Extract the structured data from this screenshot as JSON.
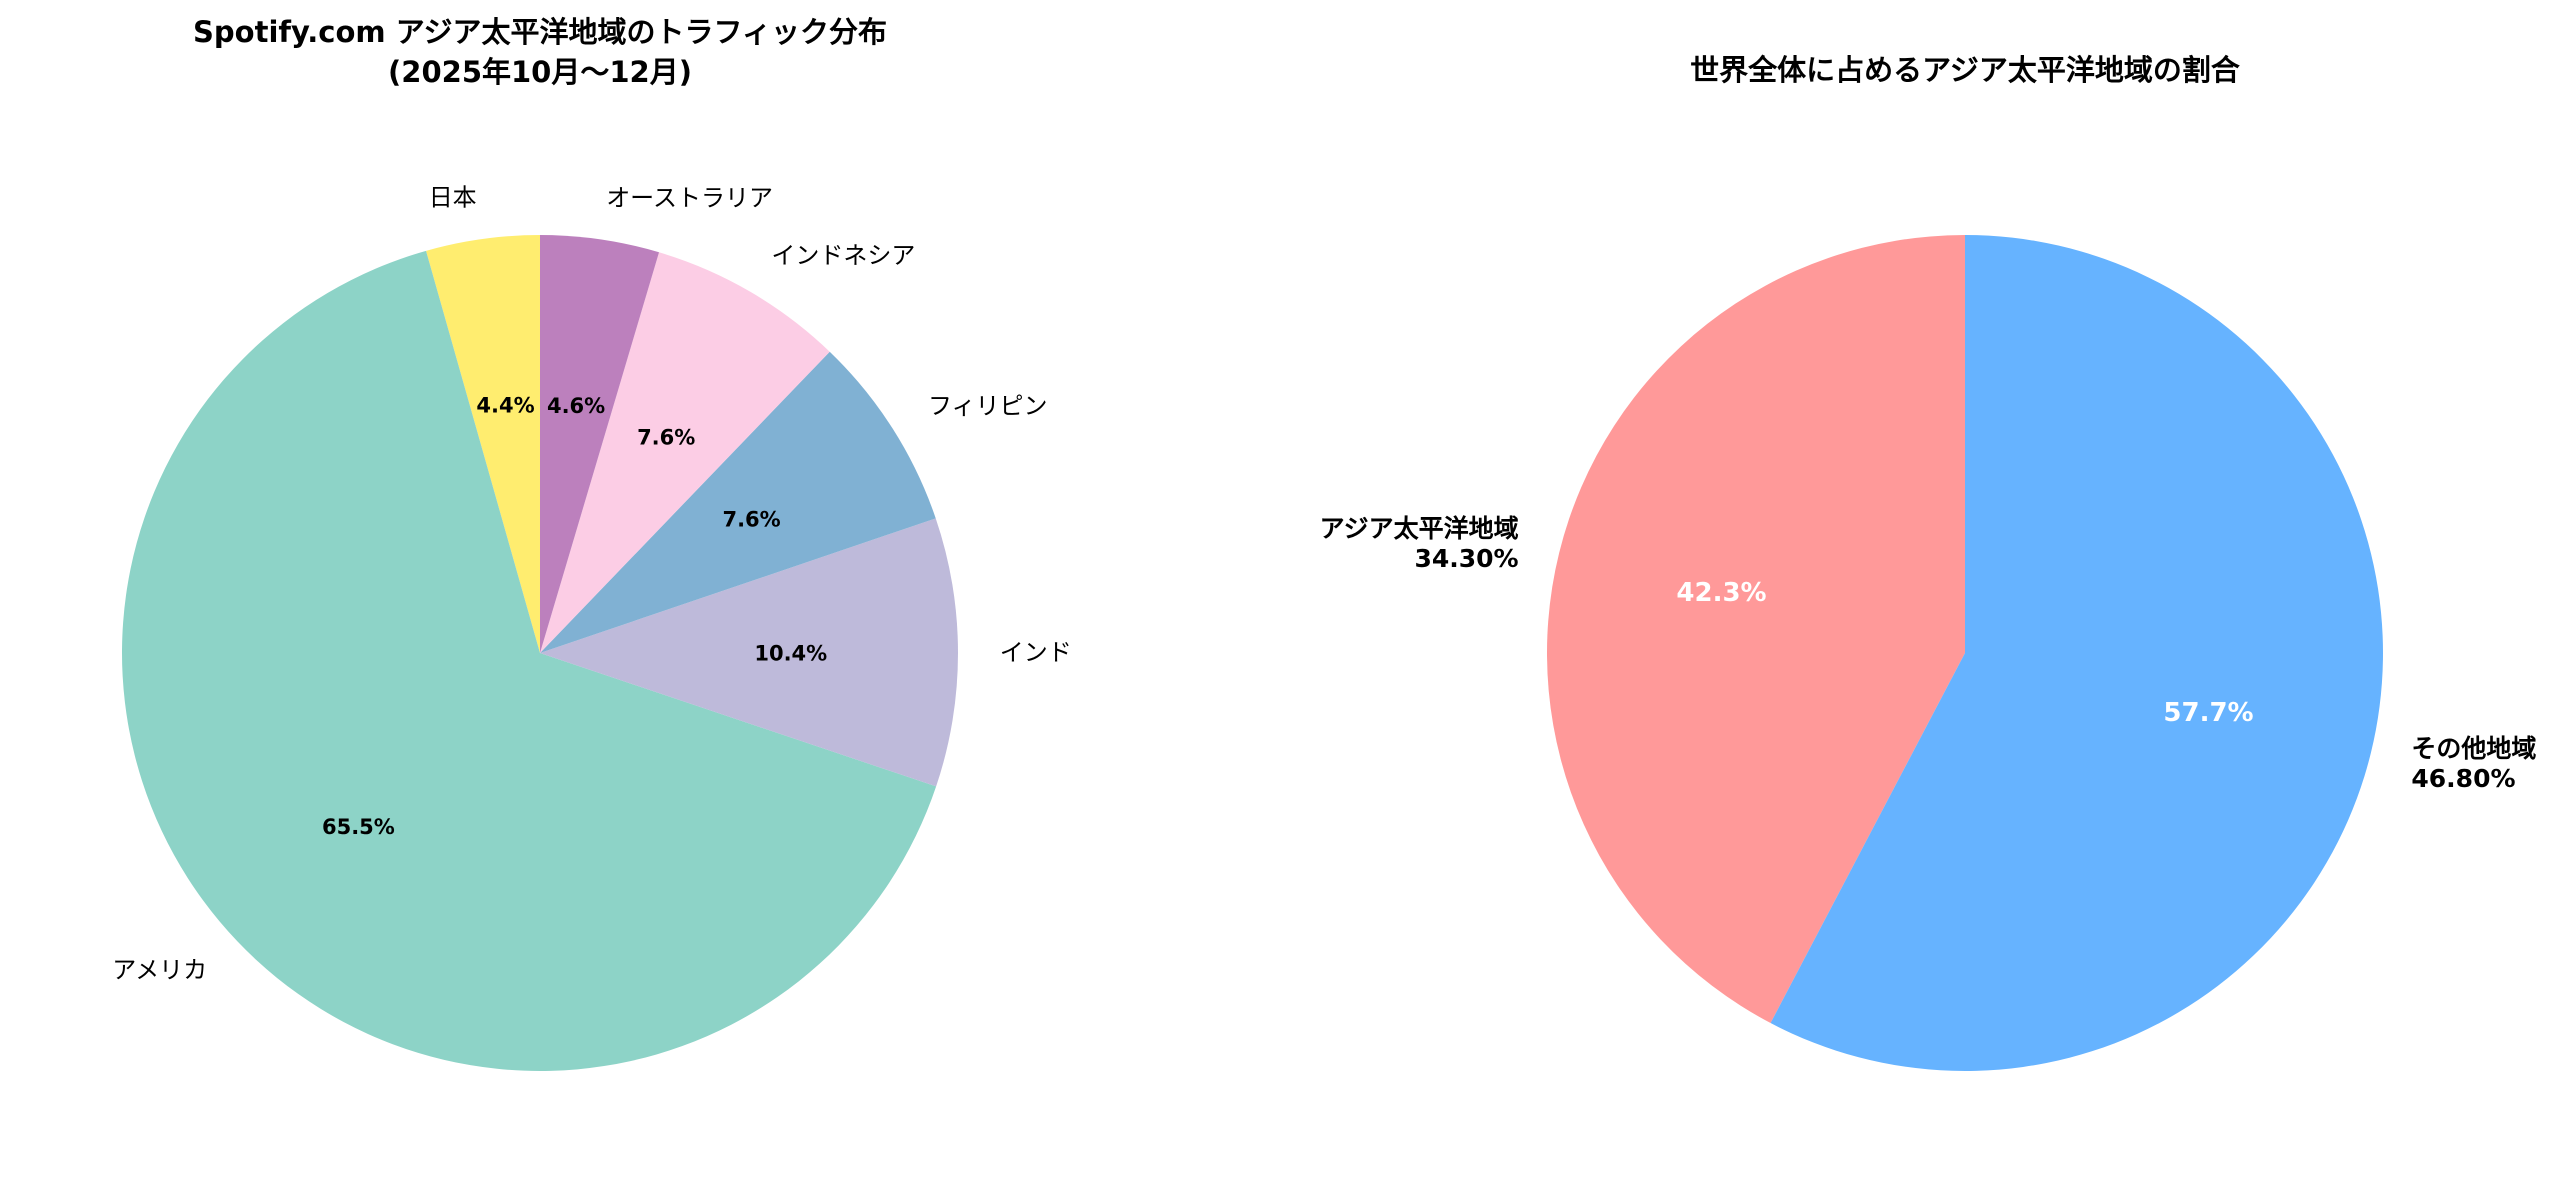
{
  "chart_data": [
    {
      "type": "pie",
      "title": "Spotify.com アジア太平洋地域のトラフィック分布",
      "subtitle": "(2025年10月〜12月)",
      "start_angle_deg": 90,
      "direction": "counterclockwise",
      "slices": [
        {
          "label": "日本",
          "value": 4.4,
          "pct_label": "4.4%",
          "color": "#ffed6f"
        },
        {
          "label": "アメリカ",
          "value": 65.5,
          "pct_label": "65.5%",
          "color": "#8dd3c7"
        },
        {
          "label": "インド",
          "value": 10.4,
          "pct_label": "10.4%",
          "color": "#bebada"
        },
        {
          "label": "フィリピン",
          "value": 7.6,
          "pct_label": "7.6%",
          "color": "#80b1d3"
        },
        {
          "label": "インドネシア",
          "value": 7.6,
          "pct_label": "7.6%",
          "color": "#fccde5"
        },
        {
          "label": "オーストラリア",
          "value": 4.6,
          "pct_label": "4.6%",
          "color": "#bc80bd"
        }
      ]
    },
    {
      "type": "pie",
      "title": "世界全体に占めるアジア太平洋地域の割合",
      "start_angle_deg": 90,
      "direction": "counterclockwise",
      "slices": [
        {
          "label": "アジア太平洋地域",
          "sub_label": "34.30%",
          "value": 42.3,
          "pct_label": "42.3%",
          "color": "#ff9999"
        },
        {
          "label": "その他地域",
          "sub_label": "46.80%",
          "value": 57.7,
          "pct_label": "57.7%",
          "color": "#66b3ff"
        }
      ]
    }
  ]
}
